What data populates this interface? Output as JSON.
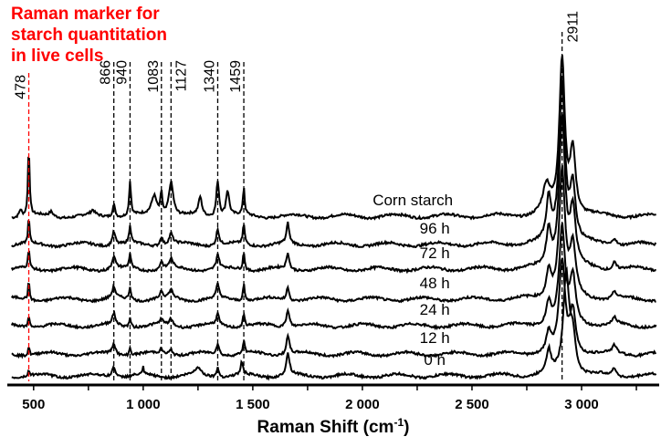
{
  "chart_data": {
    "type": "line",
    "title": "Raman marker for\nstarch quantitation\nin live cells",
    "xlabel": "Raman Shift (cm",
    "xlabel_sup": "-1",
    "xlabel_end": ")",
    "ylabel": "",
    "xlim": [
      380,
      3354
    ],
    "ylim": [
      0,
      400
    ],
    "xticks": [
      500,
      1000,
      1500,
      2000,
      2500,
      3000
    ],
    "xtick_labels": [
      "500",
      "1 000",
      "1 500",
      "2 000",
      "2 500",
      "3 000"
    ],
    "minor_tick_step": 250,
    "grid": false,
    "colors": {
      "marker": "#ff0000",
      "lines": "#000000"
    },
    "marker_lines": [
      {
        "x": 478,
        "label": "478",
        "highlight": true
      },
      {
        "x": 866,
        "label": "866",
        "highlight": false
      },
      {
        "x": 940,
        "label": "940",
        "highlight": false
      },
      {
        "x": 1083,
        "label": "1083",
        "highlight": false
      },
      {
        "x": 1127,
        "label": "1127",
        "highlight": false
      },
      {
        "x": 1340,
        "label": "1340",
        "highlight": false
      },
      {
        "x": 1459,
        "label": "1459",
        "highlight": false
      },
      {
        "x": 2911,
        "label": "2911",
        "highlight": false
      }
    ],
    "series": [
      {
        "name": "Corn starch",
        "offset": 185,
        "label_x": 2230,
        "peaks": [
          [
            478,
            75,
            9
          ],
          [
            440,
            8,
            15
          ],
          [
            580,
            5,
            20
          ],
          [
            770,
            5,
            20
          ],
          [
            866,
            14,
            15
          ],
          [
            940,
            38,
            10
          ],
          [
            1050,
            22,
            30
          ],
          [
            1083,
            25,
            10
          ],
          [
            1127,
            38,
            25
          ],
          [
            1260,
            20,
            18
          ],
          [
            1340,
            40,
            15
          ],
          [
            1385,
            28,
            18
          ],
          [
            1459,
            30,
            9
          ],
          [
            2840,
            30,
            40
          ],
          [
            2911,
            170,
            30
          ],
          [
            2960,
            70,
            30
          ]
        ]
      },
      {
        "name": "96 h",
        "offset": 154,
        "label_x": 2330,
        "peaks": [
          [
            478,
            28,
            8
          ],
          [
            866,
            15,
            18
          ],
          [
            940,
            20,
            10
          ],
          [
            1083,
            10,
            15
          ],
          [
            1127,
            12,
            20
          ],
          [
            1340,
            18,
            15
          ],
          [
            1459,
            22,
            10
          ],
          [
            1660,
            22,
            14
          ],
          [
            2850,
            45,
            25
          ],
          [
            2911,
            175,
            32
          ],
          [
            2960,
            60,
            30
          ],
          [
            3150,
            8,
            20
          ]
        ]
      },
      {
        "name": "72 h",
        "offset": 127,
        "label_x": 2330,
        "peaks": [
          [
            478,
            22,
            8
          ],
          [
            866,
            14,
            18
          ],
          [
            940,
            16,
            10
          ],
          [
            1083,
            9,
            15
          ],
          [
            1127,
            10,
            20
          ],
          [
            1340,
            16,
            15
          ],
          [
            1459,
            20,
            10
          ],
          [
            1660,
            18,
            14
          ],
          [
            2850,
            40,
            25
          ],
          [
            2911,
            165,
            32
          ],
          [
            2960,
            60,
            30
          ],
          [
            3150,
            8,
            20
          ]
        ]
      },
      {
        "name": "48 h",
        "offset": 94,
        "label_x": 2330,
        "peaks": [
          [
            478,
            20,
            8
          ],
          [
            866,
            12,
            18
          ],
          [
            940,
            14,
            10
          ],
          [
            1083,
            8,
            15
          ],
          [
            1127,
            9,
            20
          ],
          [
            1340,
            15,
            15
          ],
          [
            1459,
            18,
            10
          ],
          [
            1660,
            15,
            14
          ],
          [
            2850,
            30,
            25
          ],
          [
            2911,
            140,
            32
          ],
          [
            2960,
            55,
            30
          ],
          [
            3150,
            8,
            20
          ]
        ]
      },
      {
        "name": "24 h",
        "offset": 65,
        "label_x": 2330,
        "peaks": [
          [
            478,
            14,
            8
          ],
          [
            866,
            12,
            18
          ],
          [
            940,
            10,
            10
          ],
          [
            1083,
            6,
            15
          ],
          [
            1127,
            7,
            20
          ],
          [
            1340,
            12,
            15
          ],
          [
            1459,
            14,
            10
          ],
          [
            1660,
            18,
            18
          ],
          [
            2850,
            25,
            25
          ],
          [
            2911,
            105,
            32
          ],
          [
            2960,
            50,
            30
          ],
          [
            3150,
            8,
            20
          ]
        ]
      },
      {
        "name": "12 h",
        "offset": 34,
        "label_x": 2330,
        "peaks": [
          [
            478,
            10,
            8
          ],
          [
            866,
            12,
            18
          ],
          [
            940,
            8,
            10
          ],
          [
            1083,
            5,
            15
          ],
          [
            1127,
            6,
            20
          ],
          [
            1340,
            12,
            15
          ],
          [
            1459,
            14,
            10
          ],
          [
            1660,
            20,
            18
          ],
          [
            2850,
            22,
            25
          ],
          [
            2911,
            100,
            32
          ],
          [
            2960,
            45,
            30
          ],
          [
            3150,
            8,
            20
          ]
        ]
      },
      {
        "name": "0 h",
        "offset": 10,
        "label_x": 2330,
        "peaks": [
          [
            478,
            6,
            8
          ],
          [
            866,
            12,
            18
          ],
          [
            1000,
            8,
            6
          ],
          [
            1250,
            8,
            30
          ],
          [
            1340,
            10,
            15
          ],
          [
            1450,
            14,
            12
          ],
          [
            1660,
            24,
            18
          ],
          [
            2850,
            25,
            25
          ],
          [
            2930,
            110,
            32
          ],
          [
            2960,
            40,
            30
          ],
          [
            3150,
            8,
            20
          ]
        ]
      }
    ]
  }
}
